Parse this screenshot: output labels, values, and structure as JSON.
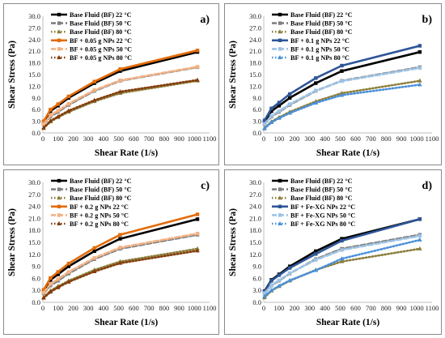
{
  "chart_data": [
    {
      "type": "line",
      "panel_label": "a)",
      "xlabel": "Shear Rate (1/s)",
      "ylabel": "Shear Stress (Pa)",
      "xlim": [
        0,
        1100
      ],
      "ylim": [
        0,
        30
      ],
      "x_ticks": [
        "0",
        "100",
        "200",
        "300",
        "400",
        "500",
        "600",
        "700",
        "800",
        "900",
        "1000",
        "1100"
      ],
      "y_ticks": [
        "0.0",
        "3.0",
        "6.0",
        "9.0",
        "12.0",
        "15.0",
        "18.0",
        "21.0",
        "24.0",
        "27.0",
        "30.0"
      ],
      "legend_position": "top-left",
      "grid": false,
      "series": [
        {
          "name": "Base Fluid (BF) 22 °C",
          "color": "#000000",
          "style": "solid",
          "marker": "square",
          "x": [
            5,
            50,
            100,
            170,
            340,
            510,
            1020
          ],
          "y": [
            2.8,
            5.6,
            7.0,
            9.0,
            12.8,
            15.9,
            20.8
          ]
        },
        {
          "name": "Base Fluid (BF) 50 °C",
          "color": "#808080",
          "style": "dashed",
          "marker": "square",
          "x": [
            5,
            50,
            100,
            170,
            340,
            510,
            1020
          ],
          "y": [
            2.2,
            4.2,
            5.4,
            7.2,
            10.8,
            13.4,
            16.9
          ]
        },
        {
          "name": "Base Fluid (BF) 80 °C",
          "color": "#8b7d3a",
          "style": "dotted",
          "marker": "triangle",
          "x": [
            5,
            50,
            100,
            170,
            340,
            510,
            1020
          ],
          "y": [
            1.2,
            2.9,
            4.0,
            5.4,
            8.1,
            10.2,
            13.4
          ]
        },
        {
          "name": "BF + 0.05 g NPs 22 °C",
          "color": "#e36c0a",
          "style": "solid",
          "marker": "square",
          "x": [
            5,
            50,
            100,
            170,
            340,
            510,
            1020
          ],
          "y": [
            3.0,
            6.0,
            7.4,
            9.4,
            13.2,
            16.4,
            21.2
          ]
        },
        {
          "name": "BF + 0.05 g NPs 50 °C",
          "color": "#f4b183",
          "style": "dashed",
          "marker": "square",
          "x": [
            5,
            50,
            100,
            170,
            340,
            510,
            1020
          ],
          "y": [
            2.3,
            4.5,
            5.7,
            7.5,
            11.0,
            13.5,
            17.0
          ]
        },
        {
          "name": "BF + 0.05 g NPs 80 °C",
          "color": "#843c0c",
          "style": "dotted",
          "marker": "triangle",
          "x": [
            5,
            50,
            100,
            170,
            340,
            510,
            1020
          ],
          "y": [
            1.3,
            3.1,
            4.2,
            5.7,
            8.4,
            10.6,
            13.6
          ]
        }
      ]
    },
    {
      "type": "line",
      "panel_label": "b)",
      "xlabel": "Shear Rate (1/s)",
      "ylabel": "Shear Stress (Pa)",
      "xlim": [
        0,
        1100
      ],
      "ylim": [
        0,
        30
      ],
      "x_ticks": [
        "0",
        "100",
        "200",
        "300",
        "400",
        "500",
        "600",
        "700",
        "800",
        "900",
        "1000",
        "1100"
      ],
      "y_ticks": [
        "0.0",
        "3.0",
        "6.0",
        "9.0",
        "12.0",
        "15.0",
        "18.0",
        "21.0",
        "24.0",
        "27.0",
        "30.0"
      ],
      "legend_position": "top-left",
      "grid": false,
      "series": [
        {
          "name": "Base Fluid (BF) 22 °C",
          "color": "#000000",
          "style": "solid",
          "marker": "square",
          "x": [
            5,
            50,
            100,
            170,
            340,
            510,
            1020
          ],
          "y": [
            2.8,
            5.6,
            7.0,
            9.0,
            12.8,
            15.9,
            20.8
          ]
        },
        {
          "name": "Base Fluid (BF) 50 °C",
          "color": "#808080",
          "style": "dashed",
          "marker": "square",
          "x": [
            5,
            50,
            100,
            170,
            340,
            510,
            1020
          ],
          "y": [
            2.2,
            4.2,
            5.4,
            7.2,
            10.8,
            13.4,
            16.9
          ]
        },
        {
          "name": "Base Fluid (BF) 80 °C",
          "color": "#8b7d3a",
          "style": "dotted",
          "marker": "triangle",
          "x": [
            5,
            50,
            100,
            170,
            340,
            510,
            1020
          ],
          "y": [
            1.2,
            2.9,
            4.0,
            5.4,
            8.1,
            10.2,
            13.4
          ]
        },
        {
          "name": "BF + 0.1 g NPs 22 °C",
          "color": "#2e5597",
          "style": "solid",
          "marker": "square",
          "x": [
            5,
            50,
            100,
            170,
            340,
            510,
            1020
          ],
          "y": [
            3.2,
            6.3,
            7.8,
            10.0,
            14.1,
            17.3,
            22.4
          ]
        },
        {
          "name": "BF + 0.1 g NPs 50 °C",
          "color": "#9dc3e6",
          "style": "dashed",
          "marker": "square",
          "x": [
            5,
            50,
            100,
            170,
            340,
            510,
            1020
          ],
          "y": [
            2.3,
            4.4,
            5.6,
            7.4,
            10.9,
            13.3,
            16.7
          ]
        },
        {
          "name": "BF + 0.1 g NPs 80 °C",
          "color": "#4a90d9",
          "style": "dotted",
          "marker": "triangle",
          "x": [
            5,
            50,
            100,
            170,
            340,
            510,
            1020
          ],
          "y": [
            1.1,
            2.7,
            3.8,
            5.1,
            7.7,
            9.7,
            12.4
          ]
        }
      ]
    },
    {
      "type": "line",
      "panel_label": "c)",
      "xlabel": "Shear Rate (1/s)",
      "ylabel": "Shear Stress (Pa)",
      "xlim": [
        0,
        1100
      ],
      "ylim": [
        0,
        30
      ],
      "x_ticks": [
        "0",
        "100",
        "200",
        "300",
        "400",
        "500",
        "600",
        "700",
        "800",
        "900",
        "1000",
        "1100"
      ],
      "y_ticks": [
        "0.0",
        "3.0",
        "6.0",
        "9.0",
        "12.0",
        "15.0",
        "18.0",
        "21.0",
        "24.0",
        "27.0",
        "30.0"
      ],
      "legend_position": "top-left",
      "grid": false,
      "series": [
        {
          "name": "Base Fluid (BF) 22 °C",
          "color": "#000000",
          "style": "solid",
          "marker": "square",
          "x": [
            5,
            50,
            100,
            170,
            340,
            510,
            1020
          ],
          "y": [
            2.8,
            5.6,
            7.0,
            9.0,
            12.8,
            15.9,
            20.8
          ]
        },
        {
          "name": "Base Fluid (BF) 50 °C",
          "color": "#808080",
          "style": "dashed",
          "marker": "square",
          "x": [
            5,
            50,
            100,
            170,
            340,
            510,
            1020
          ],
          "y": [
            2.2,
            4.2,
            5.4,
            7.2,
            10.8,
            13.4,
            16.9
          ]
        },
        {
          "name": "Base Fluid (BF) 80 °C",
          "color": "#8b7d3a",
          "style": "dotted",
          "marker": "triangle",
          "x": [
            5,
            50,
            100,
            170,
            340,
            510,
            1020
          ],
          "y": [
            1.2,
            2.9,
            4.0,
            5.4,
            8.1,
            10.2,
            13.4
          ]
        },
        {
          "name": "BF + 0.2 g NPs 22 °C",
          "color": "#e36c0a",
          "style": "solid",
          "marker": "square",
          "x": [
            5,
            50,
            100,
            170,
            340,
            510,
            1020
          ],
          "y": [
            3.1,
            6.1,
            7.6,
            9.7,
            13.6,
            16.9,
            22.0
          ]
        },
        {
          "name": "BF + 0.2 g NPs 50 °C",
          "color": "#f4b183",
          "style": "dashed",
          "marker": "square",
          "x": [
            5,
            50,
            100,
            170,
            340,
            510,
            1020
          ],
          "y": [
            2.4,
            4.6,
            5.8,
            7.6,
            11.1,
            13.7,
            17.2
          ]
        },
        {
          "name": "BF + 0.2 g NPs 80 °C",
          "color": "#843c0c",
          "style": "dotted",
          "marker": "triangle",
          "x": [
            5,
            50,
            100,
            170,
            340,
            510,
            1020
          ],
          "y": [
            1.1,
            2.6,
            3.7,
            5.1,
            7.7,
            9.8,
            12.9
          ]
        }
      ]
    },
    {
      "type": "line",
      "panel_label": "d)",
      "xlabel": "Shear Rate (1/s)",
      "ylabel": "Shear Stress (Pa)",
      "xlim": [
        0,
        1100
      ],
      "ylim": [
        0,
        30
      ],
      "x_ticks": [
        "0",
        "100",
        "200",
        "300",
        "400",
        "500",
        "600",
        "700",
        "800",
        "900",
        "1000",
        "1100"
      ],
      "y_ticks": [
        "0.0",
        "3.0",
        "6.0",
        "9.0",
        "12.0",
        "15.0",
        "18.0",
        "21.0",
        "24.0",
        "27.0",
        "30.0"
      ],
      "legend_position": "top-left",
      "grid": false,
      "series": [
        {
          "name": "Base Fluid (BF) 22 °C",
          "color": "#000000",
          "style": "solid",
          "marker": "square",
          "x": [
            5,
            50,
            100,
            170,
            340,
            510,
            1020
          ],
          "y": [
            2.8,
            5.6,
            7.0,
            9.0,
            12.8,
            15.9,
            20.8
          ]
        },
        {
          "name": "Base Fluid (BF) 50 °C",
          "color": "#808080",
          "style": "dashed",
          "marker": "square",
          "x": [
            5,
            50,
            100,
            170,
            340,
            510,
            1020
          ],
          "y": [
            2.2,
            4.2,
            5.4,
            7.2,
            10.8,
            13.4,
            16.9
          ]
        },
        {
          "name": "Base Fluid (BF) 80 °C",
          "color": "#8b7d3a",
          "style": "dotted",
          "marker": "triangle",
          "x": [
            5,
            50,
            100,
            170,
            340,
            510,
            1020
          ],
          "y": [
            1.2,
            2.9,
            4.0,
            5.4,
            8.1,
            10.2,
            13.4
          ]
        },
        {
          "name": "BF + Fe-XG NPs 22 °C",
          "color": "#2e5597",
          "style": "solid",
          "marker": "square",
          "x": [
            5,
            50,
            100,
            170,
            340,
            510,
            1020
          ],
          "y": [
            2.7,
            5.4,
            6.8,
            8.6,
            12.1,
            15.4,
            20.8
          ]
        },
        {
          "name": "BF + Fe-XG NPs 50 °C",
          "color": "#9dc3e6",
          "style": "dashed",
          "marker": "square",
          "x": [
            5,
            50,
            100,
            170,
            340,
            510,
            1020
          ],
          "y": [
            2.3,
            4.3,
            5.5,
            7.3,
            10.6,
            13.1,
            16.6
          ]
        },
        {
          "name": "BF + Fe-XG NPs 80 °C",
          "color": "#4a90d9",
          "style": "dotted",
          "marker": "triangle",
          "x": [
            5,
            50,
            100,
            170,
            340,
            510,
            1020
          ],
          "y": [
            1.5,
            3.0,
            4.1,
            5.5,
            8.0,
            10.9,
            15.6
          ]
        }
      ]
    }
  ]
}
